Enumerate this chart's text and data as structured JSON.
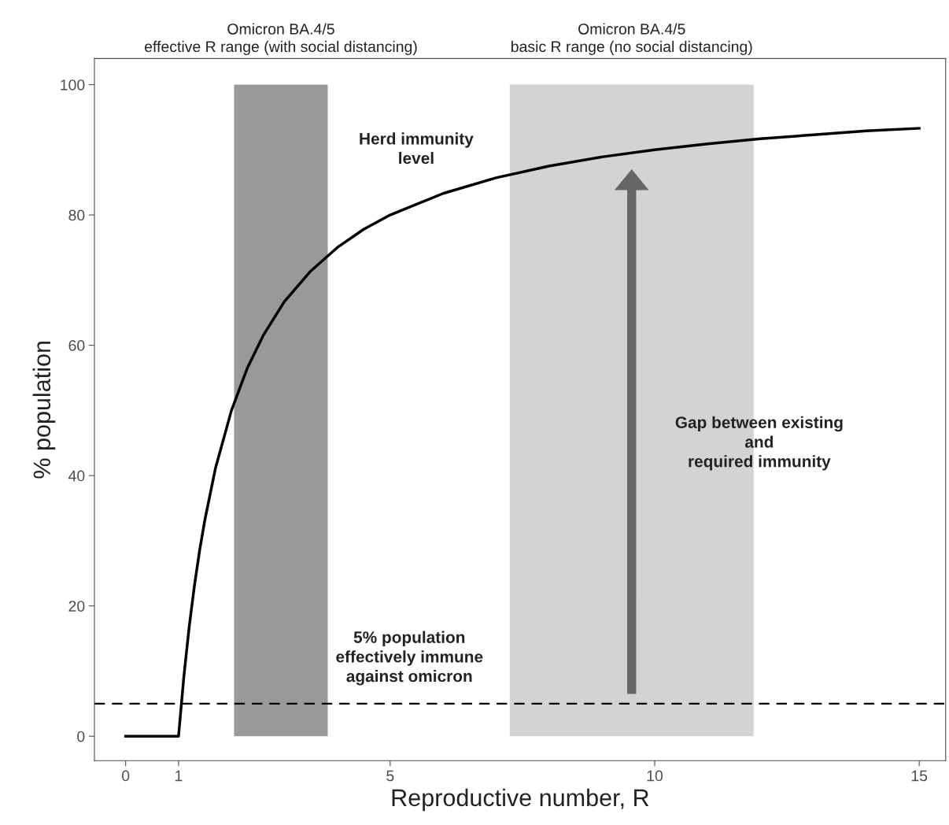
{
  "chart_data": {
    "type": "line",
    "xlabel": "Reproductive number, R",
    "ylabel": "% population",
    "xlim": [
      -0.59,
      15.5
    ],
    "xticks": [
      0,
      1,
      5,
      10,
      15
    ],
    "ylim": [
      -3.75,
      104
    ],
    "yticks": [
      0,
      20,
      40,
      60,
      80,
      100
    ],
    "grid": false,
    "legend": false,
    "marker": "none",
    "line_style": "solid",
    "series": [
      {
        "color": "#000000",
        "x": [
          0,
          1,
          1.1,
          1.2,
          1.3,
          1.4,
          1.5,
          1.7,
          2,
          2.3,
          2.6,
          3,
          3.5,
          4,
          4.5,
          5,
          6,
          7,
          8,
          9,
          10,
          11,
          12,
          13,
          14,
          15
        ],
        "values": [
          0,
          0,
          9.1,
          16.7,
          23.1,
          28.6,
          33.3,
          41.2,
          50,
          56.5,
          61.5,
          66.7,
          71.4,
          75,
          77.8,
          80,
          83.3,
          85.7,
          87.5,
          88.9,
          90,
          90.9,
          91.7,
          92.3,
          92.9,
          93.3
        ]
      }
    ],
    "bands": [
      {
        "axis": "x",
        "from": 2.05,
        "to": 3.82,
        "label": "Omicron BA.4/5\neffective R range (with social distancing)",
        "color": "#999999"
      },
      {
        "axis": "x",
        "from": 7.26,
        "to": 11.87,
        "label": "Omicron BA.4/5\nbasic R range (no social distancing)",
        "color": "#d3d3d3"
      }
    ],
    "ref_lines": [
      {
        "axis": "y",
        "value": 5,
        "color": "#000000",
        "line_style": "dashed"
      }
    ],
    "annotations": [
      "Herd immunity\nlevel",
      "5% population\neffectively immune\nagainst omicron",
      "Gap between existing\nand\nrequired immunity"
    ]
  }
}
